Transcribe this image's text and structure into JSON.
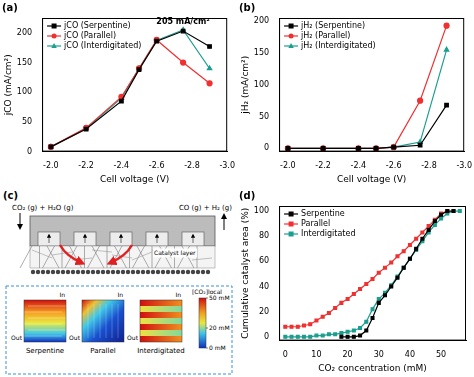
{
  "chart_data": [
    {
      "type": "line",
      "title": "(a)",
      "x_label": "Cell voltage (V)",
      "y_label": "jCO (mA/cm²)",
      "x": [
        -2.0,
        -2.2,
        -2.4,
        -2.5,
        -2.6,
        -2.75,
        -2.9
      ],
      "series": [
        {
          "name": "jCO (Serpentine)",
          "color": "#000000",
          "marker": "square",
          "values": [
            8,
            38,
            85,
            138,
            186,
            203,
            177
          ]
        },
        {
          "name": "jCO (Parallel)",
          "color": "#f03030",
          "marker": "circle",
          "values": [
            8,
            40,
            92,
            140,
            188,
            150,
            115
          ]
        },
        {
          "name": "jCO (Interdigitated)",
          "color": "#1a9e8f",
          "marker": "triangle",
          "values": [
            8,
            39,
            90,
            140,
            187,
            205,
            140
          ]
        }
      ],
      "xlim": [
        -1.95,
        -3.0
      ],
      "xticks": [
        {
          "value": -2.0,
          "label": "-2.0"
        },
        -2.2,
        -2.4,
        -2.6,
        -2.8,
        {
          "value": -3.0,
          "label": "-3.0"
        }
      ],
      "ylim": [
        0,
        225
      ],
      "yticks": [
        0,
        50,
        100,
        150,
        200
      ],
      "grid": false,
      "legend": "upper left",
      "annotation": "205 mA/cm²"
    },
    {
      "type": "line",
      "title": "(b)",
      "x_label": "Cell voltage (V)",
      "y_label": "jH₂ (mA/cm²)",
      "x": [
        -2.0,
        -2.2,
        -2.4,
        -2.5,
        -2.6,
        -2.75,
        -2.9
      ],
      "series": [
        {
          "name": "jH₂ (Serpentine)",
          "color": "#000000",
          "marker": "square",
          "values": [
            0,
            0,
            0,
            0,
            2,
            5,
            68
          ]
        },
        {
          "name": "jH₂ (Parallel)",
          "color": "#f03030",
          "marker": "circle",
          "values": [
            0,
            0,
            0,
            0,
            2,
            75,
            193
          ]
        },
        {
          "name": "jH₂ (Interdigitated)",
          "color": "#1a9e8f",
          "marker": "triangle",
          "values": [
            0,
            0,
            0,
            0,
            2,
            10,
            155
          ]
        }
      ],
      "xlim": [
        -1.95,
        -3.0
      ],
      "xticks": [
        {
          "value": -2.0,
          "label": "-2.0"
        },
        -2.2,
        -2.4,
        -2.6,
        -2.8,
        {
          "value": -3.0,
          "label": "-3.0"
        }
      ],
      "ylim": [
        -5,
        205
      ],
      "yticks": [
        0,
        50,
        100,
        150,
        200
      ],
      "grid": false,
      "legend": "upper left"
    },
    {
      "type": "line",
      "title": "(d)",
      "x_label": "CO₂ concentration (mM)",
      "y_label": "Cumulative catalyst area (%)",
      "series": [
        {
          "name": "Serpentine",
          "color": "#000000",
          "marker": "square",
          "x": [
            18,
            20,
            22,
            24,
            26,
            28,
            30,
            32,
            34,
            36,
            38,
            40,
            42,
            44,
            46,
            48,
            50,
            52,
            54
          ],
          "values": [
            0,
            0,
            0,
            1,
            5,
            15,
            27,
            33,
            40,
            47,
            55,
            62,
            70,
            78,
            85,
            92,
            97,
            100,
            100
          ]
        },
        {
          "name": "Parallel",
          "color": "#f03030",
          "marker": "square",
          "x": [
            0,
            2,
            4,
            6,
            8,
            10,
            12,
            14,
            16,
            18,
            20,
            22,
            24,
            26,
            28,
            30,
            32,
            34,
            36,
            38,
            40,
            42,
            44,
            46,
            48,
            50,
            52
          ],
          "values": [
            8,
            8,
            8,
            9,
            10,
            13,
            16,
            19,
            23,
            27,
            30,
            34,
            38,
            42,
            46,
            51,
            55,
            59,
            64,
            68,
            73,
            78,
            83,
            88,
            93,
            98,
            100
          ]
        },
        {
          "name": "Interdigitated",
          "color": "#1a9e8f",
          "marker": "square",
          "x": [
            0,
            2,
            4,
            6,
            8,
            10,
            12,
            14,
            16,
            18,
            20,
            22,
            24,
            26,
            28,
            30,
            32,
            34,
            36,
            38,
            40,
            42,
            44,
            46,
            48,
            50,
            52,
            54,
            56
          ],
          "values": [
            0,
            0,
            0,
            0,
            0,
            1,
            1,
            2,
            2,
            3,
            4,
            5,
            7,
            12,
            22,
            30,
            35,
            41,
            48,
            55,
            62,
            69,
            76,
            83,
            89,
            94,
            98,
            100,
            100
          ]
        }
      ],
      "xlim": [
        -2,
        58
      ],
      "xticks": [
        0,
        10,
        20,
        30,
        40,
        50
      ],
      "ylim": [
        -3,
        104
      ],
      "yticks": [
        0,
        20,
        40,
        60,
        80,
        100
      ],
      "grid": false,
      "legend": "upper left"
    }
  ],
  "diagram": {
    "title": "(c)",
    "inlet": "CO₂ (g) + H₂O (g)",
    "outlet": "CO (g) + H₂ (g)",
    "layer_label": "Catalyst layer",
    "flow_fields": [
      "Serpentine",
      "Parallel",
      "Interdigitated"
    ],
    "inlet_mark": "In",
    "outlet_mark": "Out",
    "colorbar": {
      "title": "[CO₂]local",
      "range": [
        0,
        50
      ],
      "ticks": [
        {
          "value": 50,
          "label": "50 mM"
        },
        {
          "value": 20,
          "label": "20 mM"
        },
        {
          "value": 0,
          "label": "0 mM"
        }
      ]
    }
  }
}
